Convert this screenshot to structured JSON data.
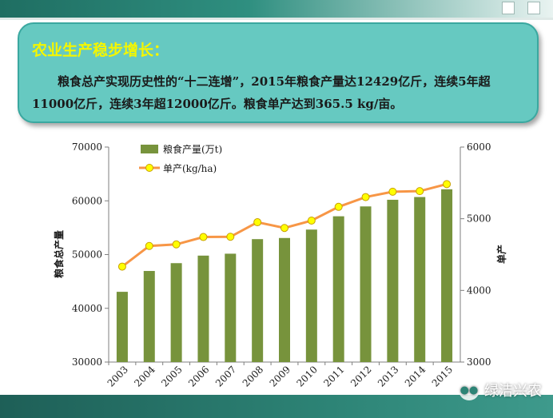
{
  "callout": {
    "title": "农业生产稳步增长：",
    "body": "粮食总产实现历史性的“十二连增”，2015年粮食产量达12429亿斤，连续5年超11000亿斤，连续3年超12000亿斤。粮食单产达到365.5 kg/亩。"
  },
  "watermark": {
    "text": "绿洁兴农",
    "icon": "wechat-icon"
  },
  "colors": {
    "bar": "#77933c",
    "line": "#f79646",
    "marker_fill": "#ffff00",
    "marker_stroke": "#c8a000",
    "callout_bg": "#66c9c1",
    "title": "#f4f600",
    "band": "#2d8476"
  },
  "chart_data": {
    "type": "bar+line",
    "categories": [
      "2003",
      "2004",
      "2005",
      "2006",
      "2007",
      "2008",
      "2009",
      "2010",
      "2011",
      "2012",
      "2013",
      "2014",
      "2015"
    ],
    "series": [
      {
        "name": "粮食产量(万t)",
        "type": "bar",
        "axis": "left",
        "values": [
          43070,
          46947,
          48402,
          49804,
          50160,
          52871,
          53082,
          54648,
          57121,
          58957,
          60194,
          60703,
          62144
        ]
      },
      {
        "name": "单产(kg/ha)",
        "type": "line",
        "axis": "right",
        "values": [
          4332,
          4620,
          4642,
          4745,
          4748,
          4951,
          4871,
          4974,
          5166,
          5302,
          5377,
          5385,
          5483
        ]
      }
    ],
    "ylabel_left": "粮食总产量",
    "ylabel_right": "单产",
    "ylim_left": [
      30000,
      70000
    ],
    "yticks_left": [
      "30000",
      "40000",
      "50000",
      "60000",
      "70000"
    ],
    "ylim_right": [
      3000,
      6000
    ],
    "yticks_right": [
      "3000",
      "4000",
      "5000",
      "6000"
    ],
    "legend_position": "top-left",
    "grid": false
  }
}
